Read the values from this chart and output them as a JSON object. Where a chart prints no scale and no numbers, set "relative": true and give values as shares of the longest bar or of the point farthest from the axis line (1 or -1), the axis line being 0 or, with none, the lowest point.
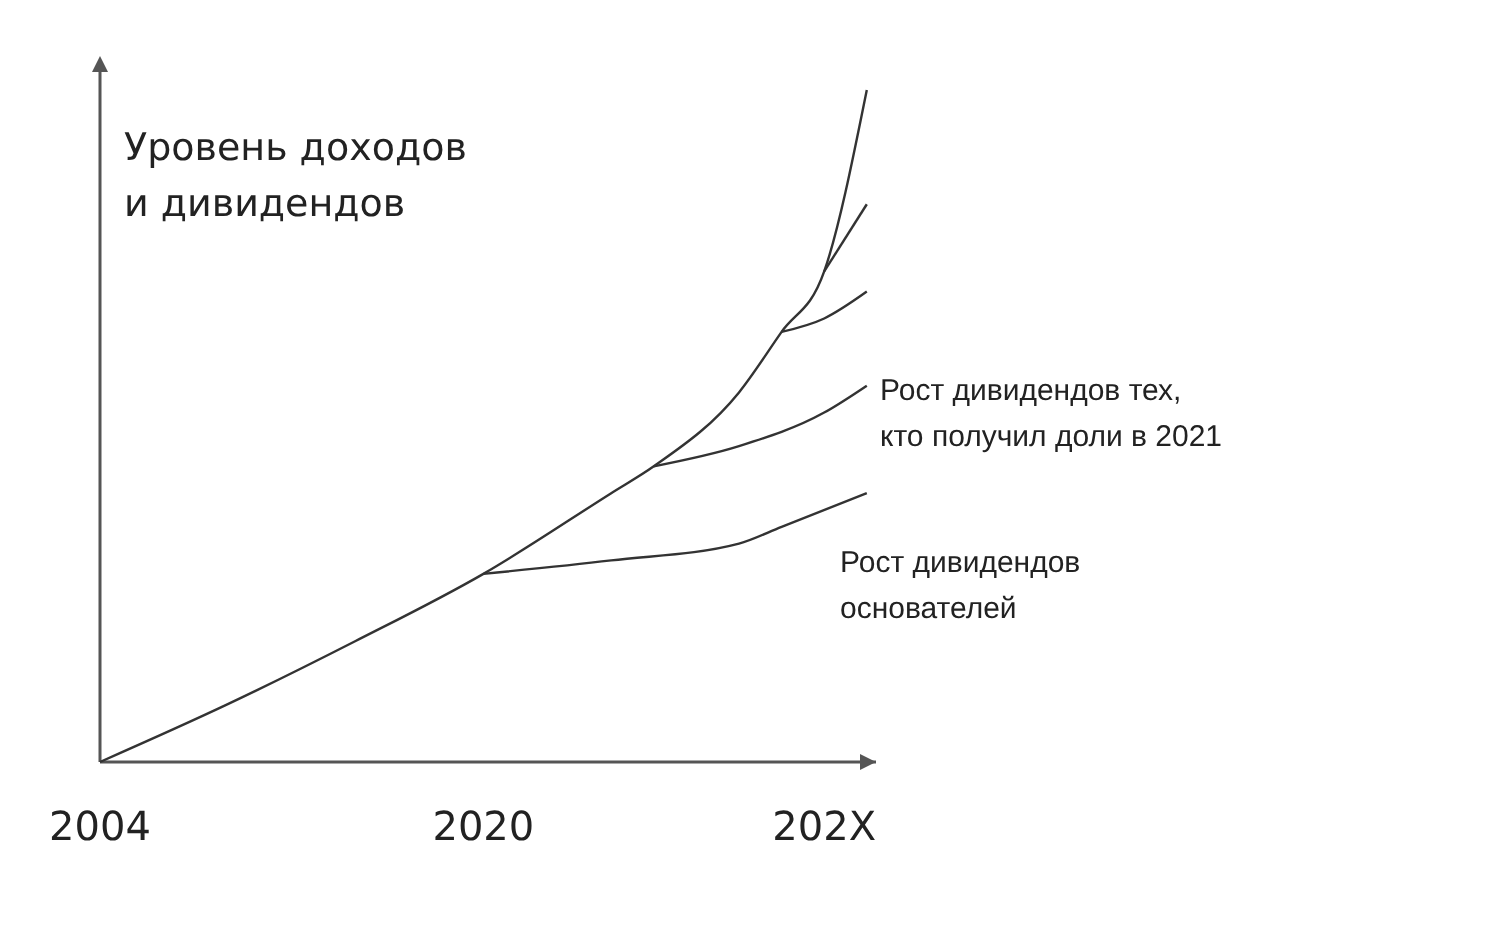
{
  "chart_data": {
    "type": "line",
    "relative": true,
    "ylabel": "Уровень доходов\nи дивидендов",
    "categories": [
      "2004",
      null,
      null,
      null,
      null,
      null,
      null,
      null,
      null,
      "2020",
      null,
      null,
      null,
      null,
      null,
      null,
      null,
      "202X",
      null
    ],
    "series": [
      {
        "color": "#333333",
        "values": [
          0,
          null,
          null,
          0.086,
          null,
          null,
          0.18,
          null,
          null,
          0.28,
          null,
          null,
          0.4,
          0.44,
          null,
          0.55,
          0.64,
          0.73,
          1.0
        ]
      },
      {
        "color": "#333333",
        "values": [
          null,
          null,
          null,
          null,
          null,
          null,
          null,
          null,
          null,
          0.28,
          null,
          null,
          0.3,
          null,
          null,
          0.325,
          0.35,
          null,
          0.4
        ]
      },
      {
        "color": "#333333",
        "values": [
          null,
          null,
          null,
          null,
          null,
          null,
          null,
          null,
          null,
          null,
          null,
          null,
          null,
          0.44,
          null,
          0.47,
          null,
          0.52,
          0.56
        ]
      },
      {
        "color": "#333333",
        "values": [
          null,
          null,
          null,
          null,
          null,
          null,
          null,
          null,
          null,
          null,
          null,
          null,
          null,
          null,
          null,
          null,
          0.64,
          0.66,
          0.7
        ]
      },
      {
        "color": "#333333",
        "values": [
          null,
          null,
          null,
          null,
          null,
          null,
          null,
          null,
          null,
          null,
          null,
          null,
          null,
          null,
          null,
          null,
          null,
          0.73,
          0.83
        ]
      }
    ],
    "annotations": [
      "Рост дивидендов тех,\nкто получил доли в 2021",
      "Рост дивидендов\nоснователей"
    ],
    "marker": "none",
    "line_style": "solid"
  }
}
